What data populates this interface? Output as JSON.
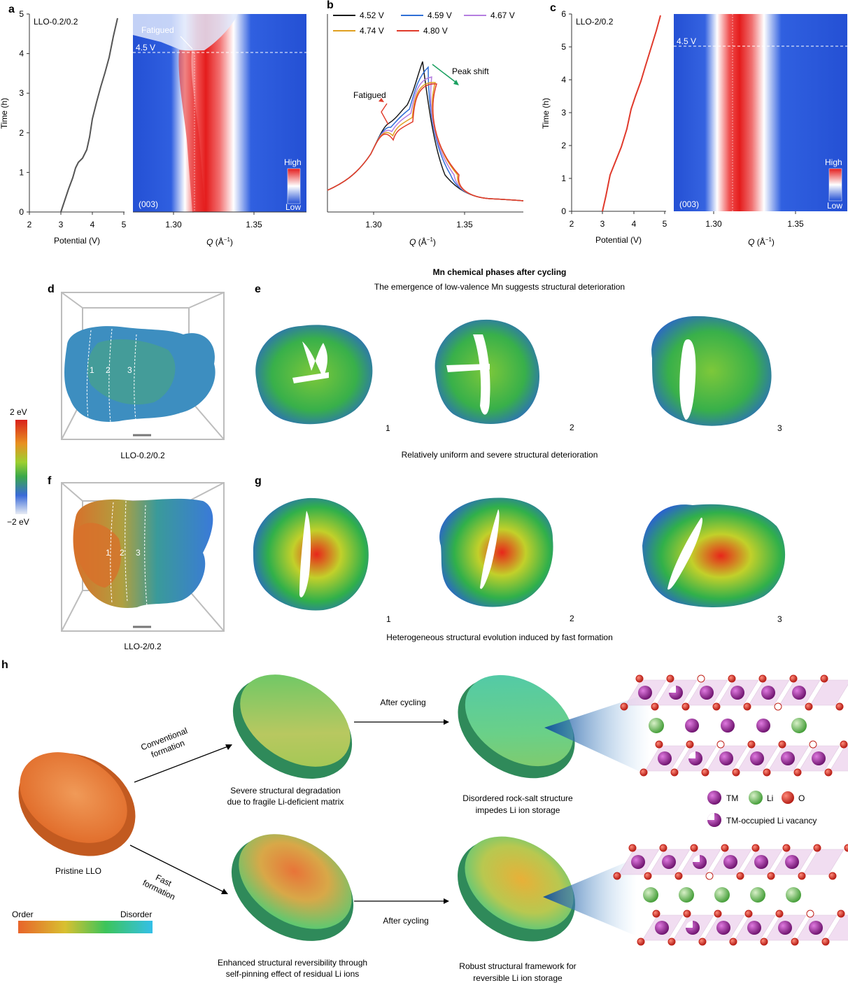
{
  "panels": {
    "a": {
      "letter": "a",
      "sample_label": "LLO-0.2/0.2",
      "voltage_line_label": "4.5 V",
      "annotation": "Fatigued",
      "reflection_label": "(003)",
      "colorbar_high": "High",
      "colorbar_low": "Low",
      "ylabel": "Time (h)",
      "xlabel_left": "Potential (V)",
      "xlabel_right_symbol": "Q",
      "xlabel_right_unit": " (Å",
      "xlabel_right_exp": "−1",
      "xlabel_right_close": ")",
      "yticks": [
        "0",
        "1",
        "2",
        "3",
        "4",
        "5"
      ],
      "xticks_left": [
        "2",
        "3",
        "4",
        "5"
      ],
      "xticks_right": [
        "1.30",
        "1.35"
      ]
    },
    "b": {
      "letter": "b",
      "legend": [
        {
          "label": "4.52 V",
          "color": "#1a1a1a"
        },
        {
          "label": "4.59 V",
          "color": "#2f6fd6"
        },
        {
          "label": "4.67 V",
          "color": "#b57ee0"
        },
        {
          "label": "4.74 V",
          "color": "#e0a020"
        },
        {
          "label": "4.80 V",
          "color": "#e03a2a"
        }
      ],
      "annot_fatigued": "Fatigued",
      "annot_shift": "Peak shift",
      "xticks": [
        "1.30",
        "1.35"
      ],
      "xlabel_symbol": "Q",
      "xlabel_unit": " (Å",
      "xlabel_exp": "−1",
      "xlabel_close": ")"
    },
    "c": {
      "letter": "c",
      "sample_label": "LLO-2/0.2",
      "voltage_line_label": "4.5 V",
      "reflection_label": "(003)",
      "colorbar_high": "High",
      "colorbar_low": "Low",
      "ylabel": "Time (h)",
      "xlabel_left": "Potential (V)",
      "yticks": [
        "0",
        "1",
        "2",
        "3",
        "4",
        "5",
        "6"
      ],
      "xticks_left": [
        "2",
        "3",
        "4",
        "5"
      ],
      "xticks_right": [
        "1.30",
        "1.35"
      ],
      "xlabel_right_symbol": "Q",
      "xlabel_right_unit": " (Å",
      "xlabel_right_exp": "−1",
      "xlabel_right_close": ")"
    },
    "d": {
      "letter": "d",
      "caption": "LLO-0.2/0.2",
      "slice_labels": [
        "1",
        "2",
        "3"
      ]
    },
    "e": {
      "letter": "e",
      "title": "Mn chemical phases after cycling",
      "subtitle": "The emergence of low-valence Mn suggests structural deterioration",
      "slice_labels": [
        "1",
        "2",
        "3"
      ],
      "caption": "Relatively uniform and severe structural deterioration"
    },
    "energy_scale": {
      "top": "2 eV",
      "bottom": "−2 eV"
    },
    "f": {
      "letter": "f",
      "caption": "LLO-2/0.2",
      "slice_labels": [
        "1",
        "2",
        "3"
      ]
    },
    "g": {
      "letter": "g",
      "slice_labels": [
        "1",
        "2",
        "3"
      ],
      "caption": "Heterogeneous structural evolution induced by fast formation"
    },
    "h": {
      "letter": "h",
      "pristine_label": "Pristine LLO",
      "conventional_label": [
        "Conventional",
        "formation"
      ],
      "fast_label": [
        "Fast",
        "formation"
      ],
      "after_cycling_top": "After cycling",
      "after_cycling_bottom": "After cycling",
      "top_mid_caption": [
        "Severe structural degradation",
        "due to fragile Li-deficient matrix"
      ],
      "top_right_caption": [
        "Disordered rock-salt structure",
        "impedes Li ion storage"
      ],
      "bottom_mid_caption": [
        "Enhanced structural reversibility through",
        "self-pinning effect of residual Li ions"
      ],
      "bottom_right_caption": [
        "Robust structural framework for",
        "reversible Li ion storage"
      ],
      "order_label": "Order",
      "disorder_label": "Disorder",
      "legend": {
        "tm": "TM",
        "li": "Li",
        "o": "O",
        "vac": "TM-occupied Li vacancy"
      }
    }
  },
  "colors": {
    "heatmap_blue": "#2a5bd7",
    "heatmap_red": "#e8241c",
    "curve_a": "#555555",
    "curve_c": "#e0392b",
    "tm": "#8e1f8c",
    "li": "#66b84a",
    "o": "#d42a1e"
  }
}
